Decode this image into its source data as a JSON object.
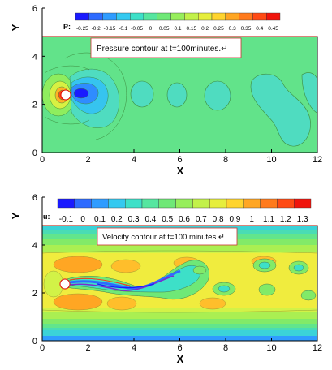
{
  "chart_data": [
    {
      "type": "contour",
      "variable_label": "P:",
      "annotation": "Pressure contour at t=100minutes.↵",
      "xlabel": "X",
      "ylabel": "Y",
      "xlim": [
        0,
        12
      ],
      "ylim": [
        0,
        6
      ],
      "x_ticks": [
        "0",
        "2",
        "4",
        "6",
        "8",
        "10",
        "12"
      ],
      "y_ticks": [
        "0",
        "2",
        "4",
        "6"
      ],
      "levels": [
        "-0.25",
        "-0.2",
        "-0.15",
        "-0.1",
        "-0.05",
        "0",
        "0.05",
        "0.1",
        "0.15",
        "0.2",
        "0.25",
        "0.3",
        "0.35",
        "0.4",
        "0.45"
      ],
      "level_colors": [
        "#1a1aff",
        "#2e6bff",
        "#2f9cff",
        "#34c9f0",
        "#3de0c8",
        "#56e6a0",
        "#6fe877",
        "#97ee5c",
        "#c2f14a",
        "#e6ee3c",
        "#ffd42e",
        "#ffa623",
        "#ff7a1c",
        "#ff4a14",
        "#f0140c"
      ],
      "background_color": "#62e38a",
      "cylinder": {
        "x": 1.0,
        "y": 2.5,
        "r": 0.22
      },
      "domain": {
        "x": [
          0,
          12
        ],
        "y": [
          0,
          5
        ]
      }
    },
    {
      "type": "contour",
      "variable_label": "u:",
      "annotation": "Velocity contour at t=100 minutes.↵",
      "xlabel": "X",
      "ylabel": "Y",
      "xlim": [
        0,
        12
      ],
      "ylim": [
        0,
        6
      ],
      "x_ticks": [
        "0",
        "2",
        "4",
        "6",
        "8",
        "10",
        "12"
      ],
      "y_ticks": [
        "0",
        "2",
        "4",
        "6"
      ],
      "levels": [
        "-0.1",
        "0",
        "0.1",
        "0.2",
        "0.3",
        "0.4",
        "0.5",
        "0.6",
        "0.7",
        "0.8",
        "0.9",
        "1",
        "1.1",
        "1.2",
        "1.3"
      ],
      "level_colors": [
        "#1a1aff",
        "#2e6bff",
        "#2f9cff",
        "#34c9f0",
        "#3de0c8",
        "#56e6a0",
        "#6fe877",
        "#97ee5c",
        "#c2f14a",
        "#e6ee3c",
        "#ffd42e",
        "#ffa623",
        "#ff7a1c",
        "#ff4a14",
        "#f0140c"
      ],
      "cylinder": {
        "x": 1.0,
        "y": 2.5,
        "r": 0.22
      },
      "domain": {
        "x": [
          0,
          12
        ],
        "y": [
          0,
          5
        ]
      }
    }
  ]
}
